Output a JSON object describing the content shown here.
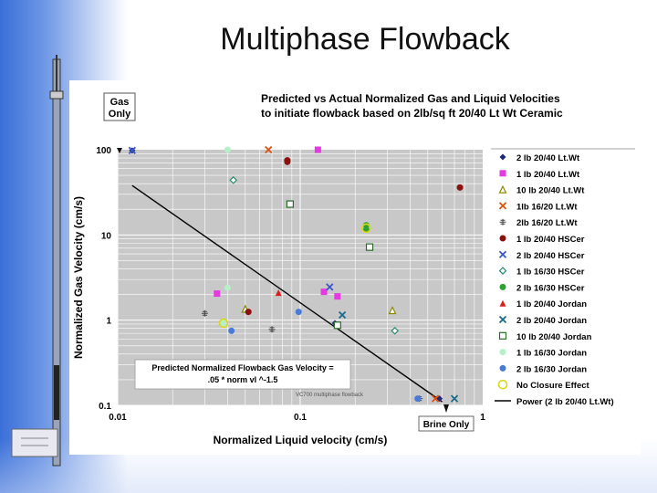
{
  "slide": {
    "title": "Multiphase Flowback"
  },
  "colors": {
    "plot_bg": "#c8c8c8",
    "grid": "#ffffff",
    "accent_blue": "#2e63d0"
  },
  "chart_data": {
    "type": "scatter",
    "title_lines": [
      "Predicted vs Actual Normalized Gas and Liquid Velocities",
      "to initiate flowback based on 2lb/sq ft 20/40 Lt Wt Ceramic"
    ],
    "xlabel": "Normalized Liquid velocity (cm/s)",
    "ylabel": "Normalized Gas Velocity (cm/s)",
    "xscale": "log",
    "yscale": "log",
    "xlim": [
      0.01,
      1
    ],
    "ylim": [
      0.1,
      100
    ],
    "x_ticks": [
      {
        "v": 0.01,
        "label": "0.01"
      },
      {
        "v": 0.1,
        "label": "0.1"
      },
      {
        "v": 1,
        "label": "1"
      }
    ],
    "y_ticks": [
      {
        "v": 0.1,
        "label": "0.1"
      },
      {
        "v": 1,
        "label": "1"
      },
      {
        "v": 10,
        "label": "10"
      },
      {
        "v": 100,
        "label": "100"
      }
    ],
    "grid": true,
    "legend_position": "right",
    "annotations": {
      "gas_only": [
        "Gas",
        "Only"
      ],
      "brine_only": "Brine Only",
      "formula": [
        "Predicted Normalized Flowback Gas Velocity =",
        ".05 * norm vl ^-1.5"
      ],
      "watermark": "VC700 multiphase flowback"
    },
    "series": [
      {
        "name": "2 lb 20/40 Lt.Wt",
        "marker": "diamond",
        "color": "#1f2a7a",
        "points": [
          [
            0.012,
            98
          ],
          [
            0.155,
            0.92
          ],
          [
            0.58,
            0.12
          ]
        ]
      },
      {
        "name": "1 lb 20/40 Lt.Wt",
        "marker": "square",
        "color": "#e43ae0",
        "points": [
          [
            0.125,
            100
          ],
          [
            0.035,
            2.05
          ],
          [
            0.135,
            2.15
          ],
          [
            0.16,
            1.9
          ]
        ]
      },
      {
        "name": "10 lb 20/40 Lt.Wt",
        "marker": "triangle-open",
        "color": "#8a8a00",
        "points": [
          [
            0.05,
            1.35
          ],
          [
            0.32,
            1.3
          ]
        ]
      },
      {
        "name": "1lb 16/20 Lt.Wt",
        "marker": "x",
        "color": "#e05010",
        "points": [
          [
            0.067,
            100
          ],
          [
            0.55,
            0.12
          ]
        ]
      },
      {
        "name": "2lb 16/20 Lt.Wt",
        "marker": "plus",
        "color": "#444444",
        "points": [
          [
            0.03,
            1.2
          ],
          [
            0.07,
            0.78
          ],
          [
            0.45,
            0.12
          ]
        ]
      },
      {
        "name": "1 lb 20/40 HSCer",
        "marker": "circle",
        "color": "#8b1010",
        "points": [
          [
            0.085,
            75
          ],
          [
            0.085,
            72
          ],
          [
            0.75,
            36
          ],
          [
            0.052,
            1.25
          ]
        ]
      },
      {
        "name": "2 lb 20/40 HSCer",
        "marker": "x",
        "color": "#3c56c8",
        "points": [
          [
            0.012,
            98
          ],
          [
            0.145,
            2.45
          ]
        ]
      },
      {
        "name": "1 lb 16/30 HSCer",
        "marker": "diamond-open",
        "color": "#2c8c72",
        "points": [
          [
            0.043,
            44
          ],
          [
            0.33,
            0.75
          ]
        ]
      },
      {
        "name": "2 lb 16/30 HSCer",
        "marker": "circle",
        "color": "#2ea02e",
        "points": [
          [
            0.23,
            13
          ],
          [
            0.23,
            11.5
          ]
        ]
      },
      {
        "name": "1 lb 20/40 Jordan",
        "marker": "triangle",
        "color": "#d81e1e",
        "points": [
          [
            0.076,
            2.1
          ]
        ]
      },
      {
        "name": "2 lb 20/40 Jordan",
        "marker": "x",
        "color": "#1a6a8a",
        "points": [
          [
            0.17,
            1.15
          ],
          [
            0.7,
            0.12
          ]
        ]
      },
      {
        "name": "10 lb 20/40 Jordan",
        "marker": "square-open",
        "color": "#2b6a2b",
        "points": [
          [
            0.088,
            23
          ],
          [
            0.24,
            7.2
          ],
          [
            0.16,
            0.87
          ]
        ]
      },
      {
        "name": "1 lb 16/30 Jordan",
        "marker": "circle",
        "color": "#b8eec8",
        "points": [
          [
            0.04,
            100
          ],
          [
            0.04,
            2.4
          ],
          [
            0.038,
            0.92
          ],
          [
            0.042,
            0.75
          ]
        ]
      },
      {
        "name": "2 lb 16/30 Jordan",
        "marker": "circle",
        "color": "#4a7ad8",
        "points": [
          [
            0.042,
            0.75
          ],
          [
            0.098,
            1.25
          ],
          [
            0.44,
            0.12
          ]
        ]
      },
      {
        "name": "No Closure Effect",
        "marker": "circle-open",
        "color": "#d8d81c",
        "points": [
          [
            0.23,
            12
          ],
          [
            0.038,
            0.92
          ]
        ]
      },
      {
        "name": "Power (2 lb 20/40 Lt.Wt)",
        "marker": "line",
        "color": "#000000",
        "formula": "y = 0.05 * x^-1.5",
        "points": [
          [
            0.012,
            38
          ],
          [
            0.6,
            0.11
          ]
        ]
      }
    ]
  }
}
